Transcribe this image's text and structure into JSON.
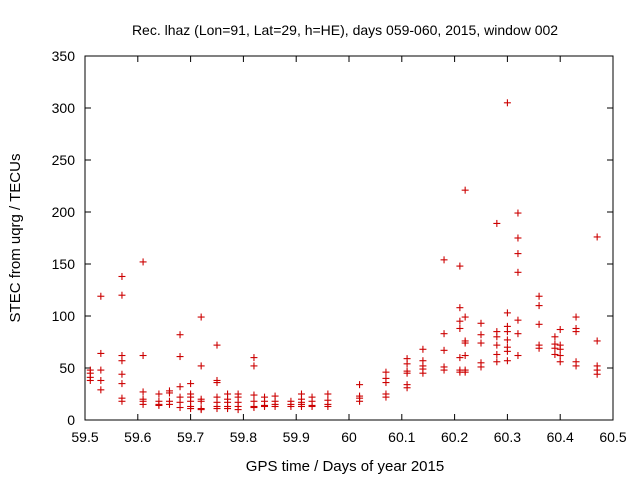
{
  "chart_data": {
    "type": "scatter",
    "title": "Rec. lhaz (Lon=91, Lat=29, h=HE), days 059-060, 2015, window 002",
    "xlabel": "GPS time / Days of year 2015",
    "ylabel": "STEC from uqrg / TECUs",
    "xlim": [
      59.5,
      60.5
    ],
    "ylim": [
      0,
      350
    ],
    "x_ticks": [
      "59.5",
      "59.6",
      "59.7",
      "59.8",
      "59.9",
      "60",
      "60.1",
      "60.2",
      "60.3",
      "60.4",
      "60.5"
    ],
    "y_ticks": [
      "0",
      "50",
      "100",
      "150",
      "200",
      "250",
      "300",
      "350"
    ],
    "grid": false,
    "marker": "+",
    "color": "#cc0000",
    "points": [
      [
        59.51,
        38
      ],
      [
        59.51,
        41
      ],
      [
        59.51,
        45
      ],
      [
        59.51,
        48
      ],
      [
        59.53,
        119
      ],
      [
        59.53,
        64
      ],
      [
        59.53,
        48
      ],
      [
        59.53,
        38
      ],
      [
        59.53,
        29
      ],
      [
        59.57,
        138
      ],
      [
        59.57,
        120
      ],
      [
        59.57,
        62
      ],
      [
        59.57,
        57
      ],
      [
        59.57,
        44
      ],
      [
        59.57,
        35
      ],
      [
        59.57,
        21
      ],
      [
        59.57,
        18
      ],
      [
        59.61,
        152
      ],
      [
        59.61,
        62
      ],
      [
        59.61,
        27
      ],
      [
        59.61,
        20
      ],
      [
        59.61,
        18
      ],
      [
        59.61,
        15
      ],
      [
        59.64,
        25
      ],
      [
        59.64,
        18
      ],
      [
        59.64,
        15
      ],
      [
        59.64,
        14
      ],
      [
        59.66,
        28
      ],
      [
        59.66,
        26
      ],
      [
        59.66,
        18
      ],
      [
        59.66,
        15
      ],
      [
        59.68,
        82
      ],
      [
        59.68,
        61
      ],
      [
        59.68,
        32
      ],
      [
        59.68,
        22
      ],
      [
        59.68,
        17
      ],
      [
        59.68,
        12
      ],
      [
        59.7,
        35
      ],
      [
        59.7,
        25
      ],
      [
        59.7,
        22
      ],
      [
        59.7,
        18
      ],
      [
        59.7,
        13
      ],
      [
        59.7,
        11
      ],
      [
        59.72,
        99
      ],
      [
        59.72,
        52
      ],
      [
        59.72,
        20
      ],
      [
        59.72,
        18
      ],
      [
        59.72,
        11
      ],
      [
        59.72,
        10
      ],
      [
        59.75,
        72
      ],
      [
        59.75,
        38
      ],
      [
        59.75,
        36
      ],
      [
        59.75,
        22
      ],
      [
        59.75,
        17
      ],
      [
        59.75,
        13
      ],
      [
        59.75,
        11
      ],
      [
        59.77,
        25
      ],
      [
        59.77,
        20
      ],
      [
        59.77,
        17
      ],
      [
        59.77,
        13
      ],
      [
        59.77,
        11
      ],
      [
        59.79,
        25
      ],
      [
        59.79,
        22
      ],
      [
        59.79,
        17
      ],
      [
        59.79,
        13
      ],
      [
        59.79,
        10
      ],
      [
        59.82,
        60
      ],
      [
        59.82,
        52
      ],
      [
        59.82,
        24
      ],
      [
        59.82,
        18
      ],
      [
        59.82,
        13
      ],
      [
        59.82,
        12
      ],
      [
        59.84,
        22
      ],
      [
        59.84,
        18
      ],
      [
        59.84,
        14
      ],
      [
        59.84,
        13
      ],
      [
        59.86,
        23
      ],
      [
        59.86,
        18
      ],
      [
        59.86,
        15
      ],
      [
        59.86,
        13
      ],
      [
        59.89,
        18
      ],
      [
        59.89,
        15
      ],
      [
        59.89,
        13
      ],
      [
        59.91,
        25
      ],
      [
        59.91,
        20
      ],
      [
        59.91,
        17
      ],
      [
        59.91,
        15
      ],
      [
        59.91,
        13
      ],
      [
        59.93,
        22
      ],
      [
        59.93,
        18
      ],
      [
        59.93,
        14
      ],
      [
        59.93,
        13
      ],
      [
        59.96,
        25
      ],
      [
        59.96,
        19
      ],
      [
        59.96,
        15
      ],
      [
        59.96,
        13
      ],
      [
        60.02,
        34
      ],
      [
        60.02,
        23
      ],
      [
        60.02,
        21
      ],
      [
        60.02,
        18
      ],
      [
        60.07,
        46
      ],
      [
        60.07,
        40
      ],
      [
        60.07,
        36
      ],
      [
        60.07,
        25
      ],
      [
        60.07,
        22
      ],
      [
        60.11,
        59
      ],
      [
        60.11,
        54
      ],
      [
        60.11,
        47
      ],
      [
        60.11,
        45
      ],
      [
        60.11,
        34
      ],
      [
        60.11,
        31
      ],
      [
        60.14,
        68
      ],
      [
        60.14,
        57
      ],
      [
        60.14,
        52
      ],
      [
        60.14,
        49
      ],
      [
        60.14,
        45
      ],
      [
        60.18,
        154
      ],
      [
        60.18,
        83
      ],
      [
        60.18,
        67
      ],
      [
        60.18,
        51
      ],
      [
        60.18,
        48
      ],
      [
        60.21,
        148
      ],
      [
        60.21,
        108
      ],
      [
        60.21,
        95
      ],
      [
        60.21,
        88
      ],
      [
        60.21,
        60
      ],
      [
        60.21,
        48
      ],
      [
        60.21,
        46
      ],
      [
        60.22,
        221
      ],
      [
        60.22,
        99
      ],
      [
        60.22,
        76
      ],
      [
        60.22,
        74
      ],
      [
        60.22,
        62
      ],
      [
        60.22,
        48
      ],
      [
        60.22,
        46
      ],
      [
        60.25,
        93
      ],
      [
        60.25,
        82
      ],
      [
        60.25,
        74
      ],
      [
        60.25,
        55
      ],
      [
        60.25,
        51
      ],
      [
        60.28,
        189
      ],
      [
        60.28,
        85
      ],
      [
        60.28,
        80
      ],
      [
        60.28,
        72
      ],
      [
        60.28,
        63
      ],
      [
        60.28,
        56
      ],
      [
        60.3,
        305
      ],
      [
        60.3,
        103
      ],
      [
        60.3,
        90
      ],
      [
        60.3,
        85
      ],
      [
        60.3,
        77
      ],
      [
        60.3,
        70
      ],
      [
        60.3,
        66
      ],
      [
        60.3,
        57
      ],
      [
        60.32,
        199
      ],
      [
        60.32,
        175
      ],
      [
        60.32,
        160
      ],
      [
        60.32,
        142
      ],
      [
        60.32,
        96
      ],
      [
        60.32,
        83
      ],
      [
        60.32,
        62
      ],
      [
        60.36,
        119
      ],
      [
        60.36,
        110
      ],
      [
        60.36,
        92
      ],
      [
        60.36,
        72
      ],
      [
        60.36,
        69
      ],
      [
        60.39,
        80
      ],
      [
        60.39,
        73
      ],
      [
        60.39,
        69
      ],
      [
        60.39,
        63
      ],
      [
        60.4,
        87
      ],
      [
        60.4,
        72
      ],
      [
        60.4,
        68
      ],
      [
        60.4,
        62
      ],
      [
        60.4,
        56
      ],
      [
        60.43,
        99
      ],
      [
        60.43,
        88
      ],
      [
        60.43,
        85
      ],
      [
        60.43,
        56
      ],
      [
        60.43,
        52
      ],
      [
        60.47,
        176
      ],
      [
        60.47,
        76
      ],
      [
        60.47,
        52
      ],
      [
        60.47,
        48
      ],
      [
        60.47,
        44
      ]
    ]
  }
}
